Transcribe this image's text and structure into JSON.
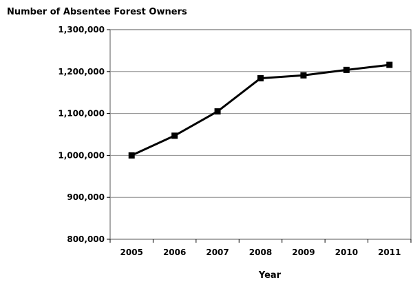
{
  "chart_data": {
    "type": "line",
    "ylabel": "Number of Absentee Forest Owners",
    "xlabel": "Year",
    "x": [
      "2005",
      "2006",
      "2007",
      "2008",
      "2009",
      "2010",
      "2011"
    ],
    "series": [
      {
        "values": [
          1000000,
          1047000,
          1105000,
          1184000,
          1191000,
          1204000,
          1216000
        ]
      }
    ],
    "ylim": [
      800000,
      1300000
    ],
    "yticks": [
      "800,000",
      "900,000",
      "1,000,000",
      "1,100,000",
      "1,200,000",
      "1,300,000"
    ],
    "grid": "horizontal",
    "legend": "none",
    "colors": {
      "line": "#000000",
      "grid": "#8c8c8c",
      "axis": "#000000"
    }
  }
}
